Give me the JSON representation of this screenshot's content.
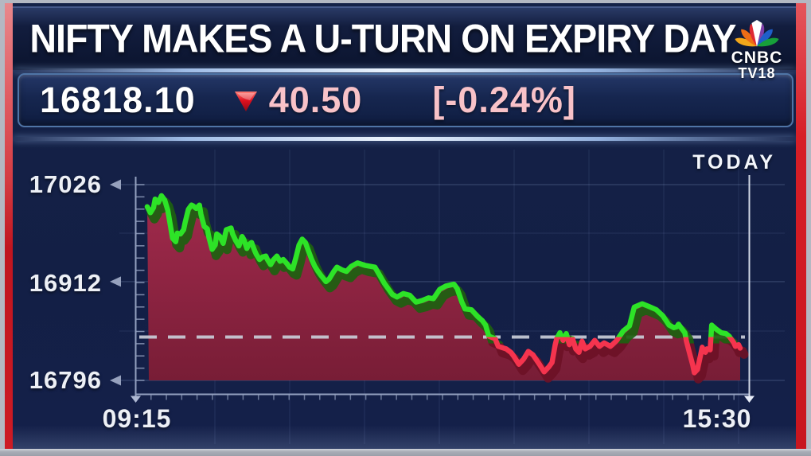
{
  "frame": {
    "border_color": "#b4b8c2",
    "left_stripe_color": "#cd1b24",
    "right_stripe_color": "#d71f27",
    "background_color": "#131f45"
  },
  "header": {
    "title": "NIFTY MAKES A U-TURN ON EXPIRY DAY",
    "logo": {
      "line1": "CNBC",
      "line2": "TV18",
      "peacock_colors": [
        "#f2a71b",
        "#ed6d16",
        "#e02a33",
        "#7e3fa8",
        "#1e5fc9",
        "#17a03a"
      ]
    }
  },
  "quote": {
    "last": "16818.10",
    "direction": "down",
    "down_color": "#e0101f",
    "change": "40.50",
    "change_percent": "[-0.24%]",
    "change_text_color": "#f8c2c8"
  },
  "chart_data": {
    "type": "area",
    "badge": "TODAY",
    "xticks": [
      "09:15",
      "15:30"
    ],
    "yticks": [
      "17026",
      "16912",
      "16796"
    ],
    "ylim": [
      16796,
      17026
    ],
    "session_minutes": 375,
    "reference_level": 16847,
    "grid": true,
    "line_color_above": "#2de327",
    "line_color_below": "#f5344e",
    "shadow_color_above": "#1d6110",
    "shadow_color_below": "#6d1126",
    "area_color_top": "#a12a4c",
    "area_color_bottom": "#781d36",
    "dashed_line_color": "#c9cdd8",
    "axis_color": "#93a0bf",
    "points": [
      [
        0,
        17000
      ],
      [
        2,
        16993
      ],
      [
        4,
        16999
      ],
      [
        5,
        17009
      ],
      [
        7,
        17005
      ],
      [
        9,
        17013
      ],
      [
        11,
        17008
      ],
      [
        13,
        16996
      ],
      [
        14,
        16985
      ],
      [
        16,
        16963
      ],
      [
        18,
        16959
      ],
      [
        19,
        16969
      ],
      [
        21,
        16968
      ],
      [
        23,
        16973
      ],
      [
        24,
        16982
      ],
      [
        26,
        16997
      ],
      [
        28,
        17002
      ],
      [
        29,
        17001
      ],
      [
        31,
        16998
      ],
      [
        33,
        17002
      ],
      [
        34,
        16991
      ],
      [
        36,
        16977
      ],
      [
        38,
        16974
      ],
      [
        39,
        16964
      ],
      [
        41,
        16950
      ],
      [
        43,
        16955
      ],
      [
        44,
        16968
      ],
      [
        46,
        16965
      ],
      [
        48,
        16957
      ],
      [
        50,
        16973
      ],
      [
        53,
        16975
      ],
      [
        54,
        16968
      ],
      [
        56,
        16960
      ],
      [
        58,
        16954
      ],
      [
        60,
        16965
      ],
      [
        61,
        16962
      ],
      [
        63,
        16951
      ],
      [
        64,
        16955
      ],
      [
        66,
        16958
      ],
      [
        68,
        16948
      ],
      [
        69,
        16944
      ],
      [
        71,
        16938
      ],
      [
        73,
        16941
      ],
      [
        75,
        16942
      ],
      [
        76,
        16938
      ],
      [
        78,
        16932
      ],
      [
        80,
        16938
      ],
      [
        82,
        16942
      ],
      [
        84,
        16936
      ],
      [
        86,
        16938
      ],
      [
        88,
        16934
      ],
      [
        90,
        16929
      ],
      [
        92,
        16927
      ],
      [
        94,
        16940
      ],
      [
        96,
        16955
      ],
      [
        98,
        16962
      ],
      [
        100,
        16958
      ],
      [
        102,
        16948
      ],
      [
        104,
        16938
      ],
      [
        106,
        16930
      ],
      [
        108,
        16924
      ],
      [
        110,
        16919
      ],
      [
        113,
        16912
      ],
      [
        115,
        16915
      ],
      [
        118,
        16924
      ],
      [
        120,
        16929
      ],
      [
        123,
        16926
      ],
      [
        126,
        16924
      ],
      [
        129,
        16930
      ],
      [
        133,
        16934
      ],
      [
        138,
        16931
      ],
      [
        144,
        16929
      ],
      [
        150,
        16910
      ],
      [
        155,
        16897
      ],
      [
        158,
        16894
      ],
      [
        162,
        16898
      ],
      [
        166,
        16896
      ],
      [
        170,
        16888
      ],
      [
        174,
        16890
      ],
      [
        178,
        16893
      ],
      [
        181,
        16892
      ],
      [
        185,
        16903
      ],
      [
        189,
        16907
      ],
      [
        194,
        16909
      ],
      [
        196,
        16904
      ],
      [
        199,
        16888
      ],
      [
        201,
        16880
      ],
      [
        205,
        16879
      ],
      [
        209,
        16871
      ],
      [
        212,
        16866
      ],
      [
        214,
        16861
      ],
      [
        216,
        16848
      ],
      [
        220,
        16845
      ],
      [
        222,
        16836
      ],
      [
        227,
        16833
      ],
      [
        230,
        16829
      ],
      [
        232,
        16824
      ],
      [
        235,
        16815
      ],
      [
        238,
        16821
      ],
      [
        241,
        16830
      ],
      [
        244,
        16826
      ],
      [
        248,
        16815
      ],
      [
        251,
        16806
      ],
      [
        254,
        16812
      ],
      [
        256,
        16817
      ],
      [
        258,
        16838
      ],
      [
        259,
        16845
      ],
      [
        261,
        16852
      ],
      [
        263,
        16843
      ],
      [
        265,
        16851
      ],
      [
        267,
        16838
      ],
      [
        269,
        16845
      ],
      [
        271,
        16833
      ],
      [
        273,
        16829
      ],
      [
        275,
        16842
      ],
      [
        277,
        16833
      ],
      [
        280,
        16836
      ],
      [
        283,
        16843
      ],
      [
        286,
        16836
      ],
      [
        289,
        16840
      ],
      [
        293,
        16836
      ],
      [
        297,
        16843
      ],
      [
        301,
        16854
      ],
      [
        305,
        16860
      ],
      [
        308,
        16882
      ],
      [
        313,
        16886
      ],
      [
        317,
        16883
      ],
      [
        322,
        16879
      ],
      [
        326,
        16872
      ],
      [
        330,
        16861
      ],
      [
        333,
        16858
      ],
      [
        335,
        16859
      ],
      [
        336,
        16862
      ],
      [
        338,
        16857
      ],
      [
        340,
        16852
      ],
      [
        341,
        16842
      ],
      [
        343,
        16828
      ],
      [
        345,
        16814
      ],
      [
        346,
        16805
      ],
      [
        348,
        16809
      ],
      [
        350,
        16826
      ],
      [
        351,
        16835
      ],
      [
        352,
        16830
      ],
      [
        353,
        16829
      ],
      [
        354,
        16833
      ],
      [
        356,
        16832
      ],
      [
        357,
        16861
      ],
      [
        360,
        16856
      ],
      [
        363,
        16852
      ],
      [
        366,
        16851
      ],
      [
        368,
        16848
      ],
      [
        371,
        16840
      ],
      [
        372,
        16836
      ],
      [
        374,
        16838
      ],
      [
        375,
        16834
      ]
    ]
  }
}
